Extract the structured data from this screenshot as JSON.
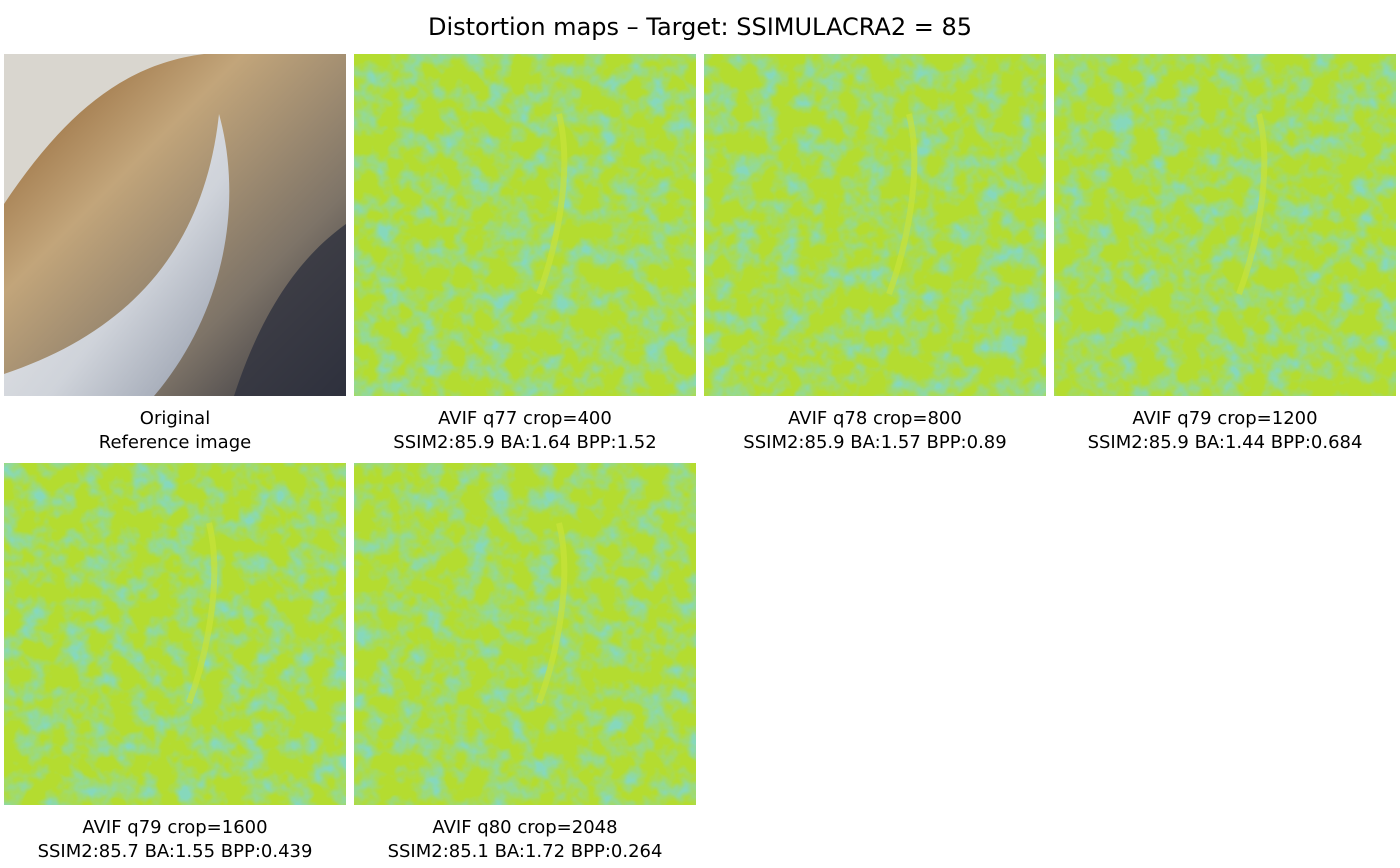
{
  "title": "Distortion maps – Target: SSIMULACRA2 = 85",
  "panels": [
    {
      "line1": "Original",
      "line2": "Reference image"
    },
    {
      "line1": "AVIF q77 crop=400",
      "line2": "SSIM2:85.9 BA:1.64 BPP:1.52"
    },
    {
      "line1": "AVIF q78 crop=800",
      "line2": "SSIM2:85.9 BA:1.57 BPP:0.89"
    },
    {
      "line1": "AVIF q79 crop=1200",
      "line2": "SSIM2:85.9 BA:1.44 BPP:0.684"
    },
    {
      "line1": "AVIF q79 crop=1600",
      "line2": "SSIM2:85.7 BA:1.55 BPP:0.439"
    },
    {
      "line1": "AVIF q80 crop=2048",
      "line2": "SSIM2:85.1 BA:1.72 BPP:0.264"
    }
  ]
}
